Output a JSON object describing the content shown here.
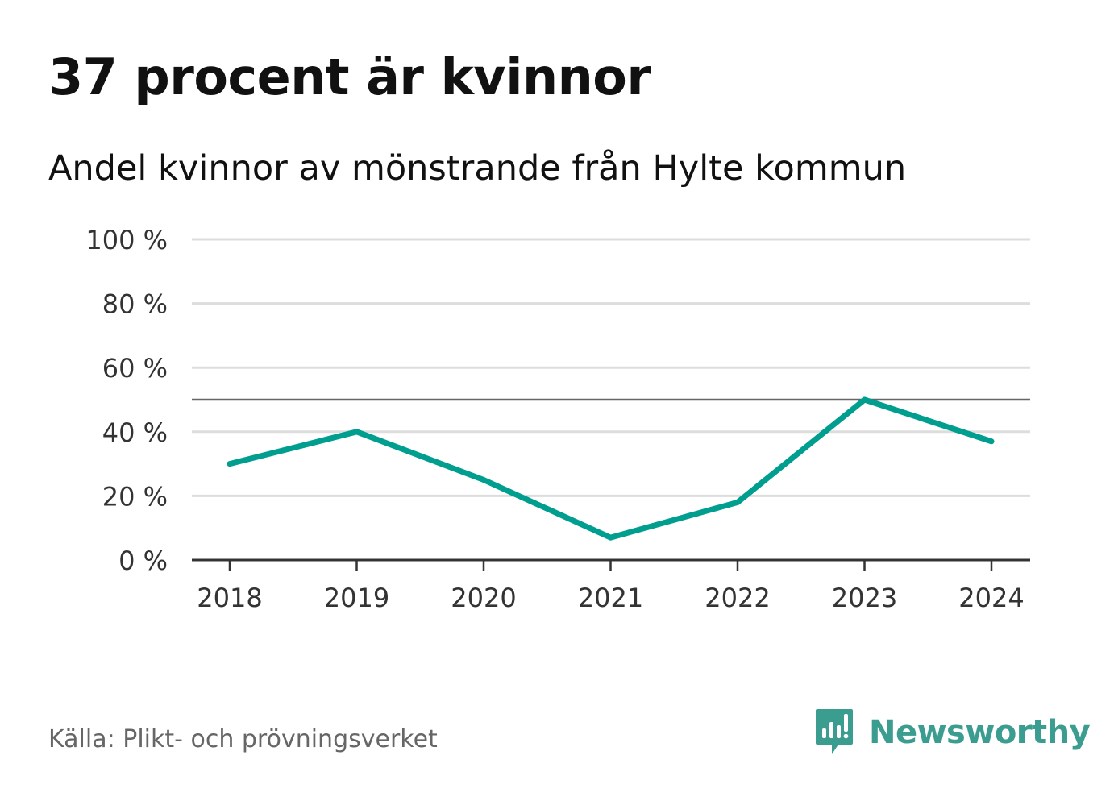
{
  "header": {
    "title": "37 procent är kvinnor",
    "subtitle": "Andel kvinnor av mönstrande från Hylte kommun"
  },
  "footer": {
    "source": "Källa: Plikt- och prövningsverket",
    "brand": "Newsworthy"
  },
  "colors": {
    "line": "#009e8f",
    "reference_line": "#666666",
    "grid": "#dddddd",
    "axis": "#333333",
    "brand": "#3a9d90"
  },
  "chart_data": {
    "type": "line",
    "title": "37 procent är kvinnor",
    "subtitle": "Andel kvinnor av mönstrande från Hylte kommun",
    "xlabel": "",
    "ylabel": "",
    "categories": [
      "2018",
      "2019",
      "2020",
      "2021",
      "2022",
      "2023",
      "2024"
    ],
    "series": [
      {
        "name": "Andel kvinnor",
        "values": [
          30,
          40,
          25,
          7,
          18,
          50,
          37
        ]
      }
    ],
    "reference_line": 50,
    "ylim": [
      0,
      100
    ],
    "yticks": [
      0,
      20,
      40,
      60,
      80,
      100
    ],
    "ytick_labels": [
      "0 %",
      "20 %",
      "40 %",
      "60 %",
      "80 %",
      "100 %"
    ],
    "grid": true,
    "legend": "none"
  }
}
